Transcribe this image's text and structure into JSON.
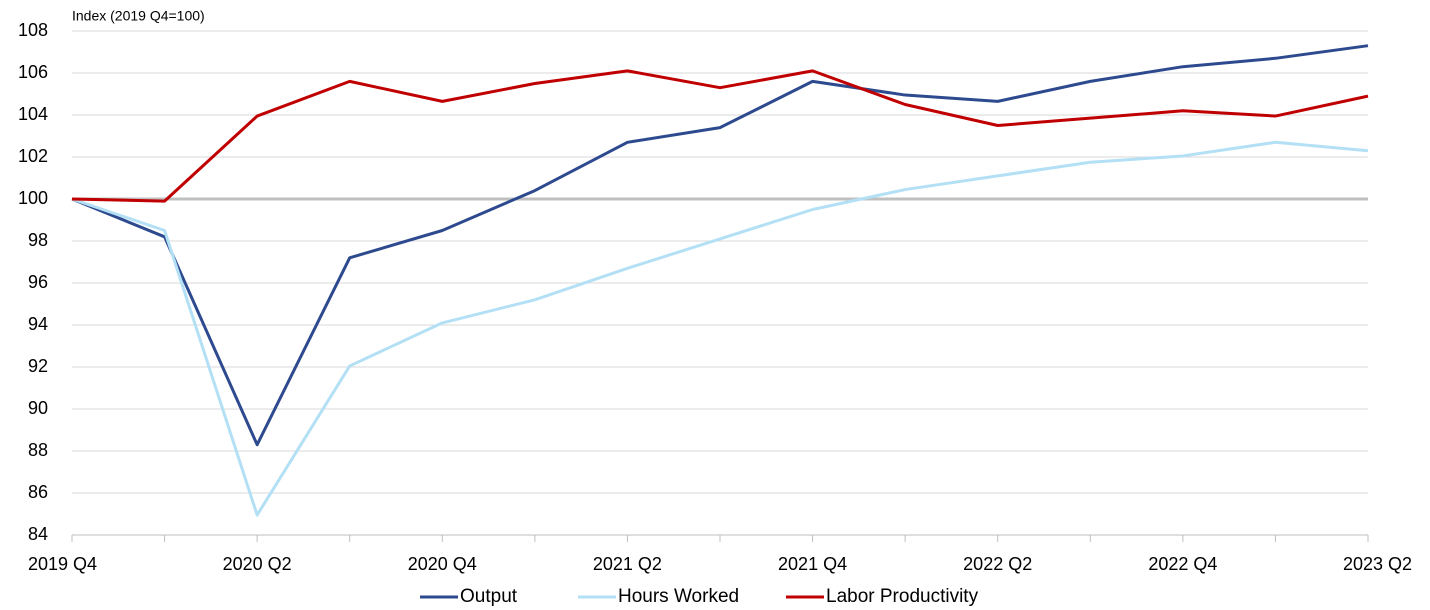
{
  "chart_data": {
    "type": "line",
    "ylabel": "Index (2019 Q4=100)",
    "categories": [
      "2019 Q4",
      null,
      "2020 Q2",
      null,
      "2020 Q4",
      null,
      "2021 Q2",
      null,
      "2021 Q4",
      null,
      "2022 Q2",
      null,
      "2022 Q4",
      null,
      "2023 Q2"
    ],
    "series": [
      {
        "name": "Output",
        "color": "#2e4a8f",
        "values": [
          100,
          98.2,
          88.3,
          97.2,
          98.5,
          100.4,
          102.7,
          103.4,
          105.6,
          104.95,
          104.65,
          105.6,
          106.3,
          106.7,
          107.3
        ]
      },
      {
        "name": "Hours Worked",
        "color": "#b3e0f5",
        "values": [
          100,
          98.5,
          84.95,
          92.05,
          94.1,
          95.2,
          96.7,
          98.1,
          99.5,
          100.45,
          101.1,
          101.75,
          102.05,
          102.7,
          102.3
        ]
      },
      {
        "name": "Labor Productivity",
        "color": "#c00000",
        "values": [
          100,
          99.9,
          103.95,
          105.6,
          104.65,
          105.5,
          106.1,
          105.3,
          106.1,
          104.5,
          103.5,
          103.85,
          104.2,
          103.95,
          104.9
        ]
      }
    ],
    "reference_line": 100,
    "ylim": [
      84,
      108
    ],
    "yticks": [
      84,
      86,
      88,
      90,
      92,
      94,
      96,
      98,
      100,
      102,
      104,
      106,
      108
    ],
    "grid": true,
    "legend": "bottom"
  }
}
